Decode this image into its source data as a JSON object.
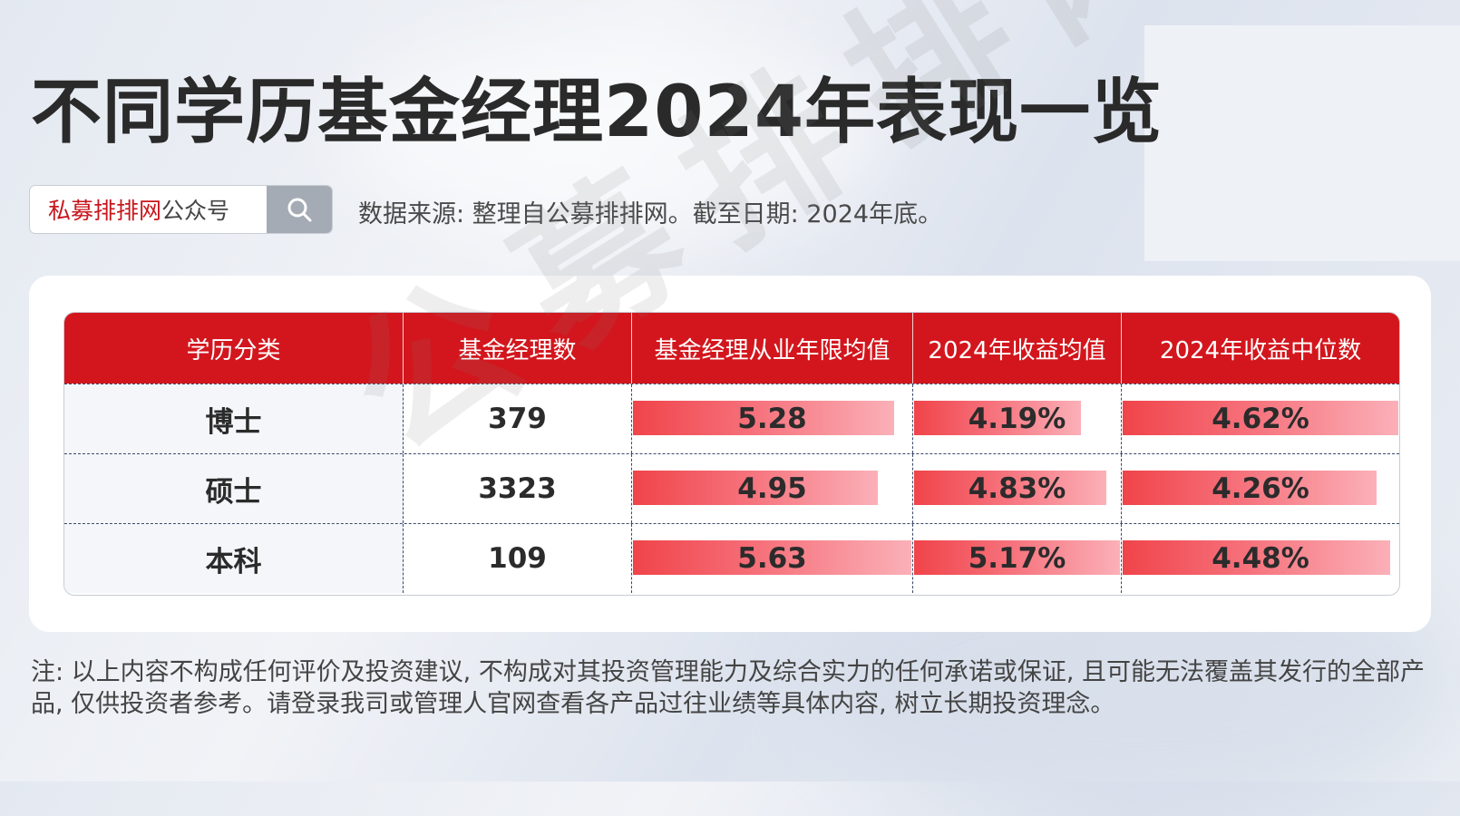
{
  "title": "不同学历基金经理2024年表现一览",
  "search": {
    "brand": "私募排排网",
    "suffix": "公众号",
    "icon": "search-icon"
  },
  "source": "数据来源: 整理自公募排排网。截至日期: 2024年底。",
  "table": {
    "headers": [
      "学历分类",
      "基金经理数",
      "基金经理从业年限均值",
      "2024年收益均值",
      "2024年收益中位数"
    ],
    "rows": [
      {
        "label": "博士",
        "count": "379",
        "years": "5.28",
        "mean": "4.19%",
        "median": "4.62%"
      },
      {
        "label": "硕士",
        "count": "3323",
        "years": "4.95",
        "mean": "4.83%",
        "median": "4.26%"
      },
      {
        "label": "本科",
        "count": "109",
        "years": "5.63",
        "mean": "5.17%",
        "median": "4.48%"
      }
    ],
    "bar_scale": {
      "years_max": 5.63,
      "mean_max": 5.17,
      "median_max": 4.62
    }
  },
  "watermark": "公募排排网",
  "note": "注: 以上内容不构成任何评价及投资建议, 不构成对其投资管理能力及综合实力的任何承诺或保证, 且可能无法覆盖其发行的全部产品, 仅供投资者参考。请登录我司或管理人官网查看各产品过往业绩等具体内容, 树立长期投资理念。",
  "colors": {
    "header_red": "#d3161d",
    "bar_start": "#f0444a",
    "bar_end": "#fbb0b8",
    "brand_red": "#c8161d"
  }
}
